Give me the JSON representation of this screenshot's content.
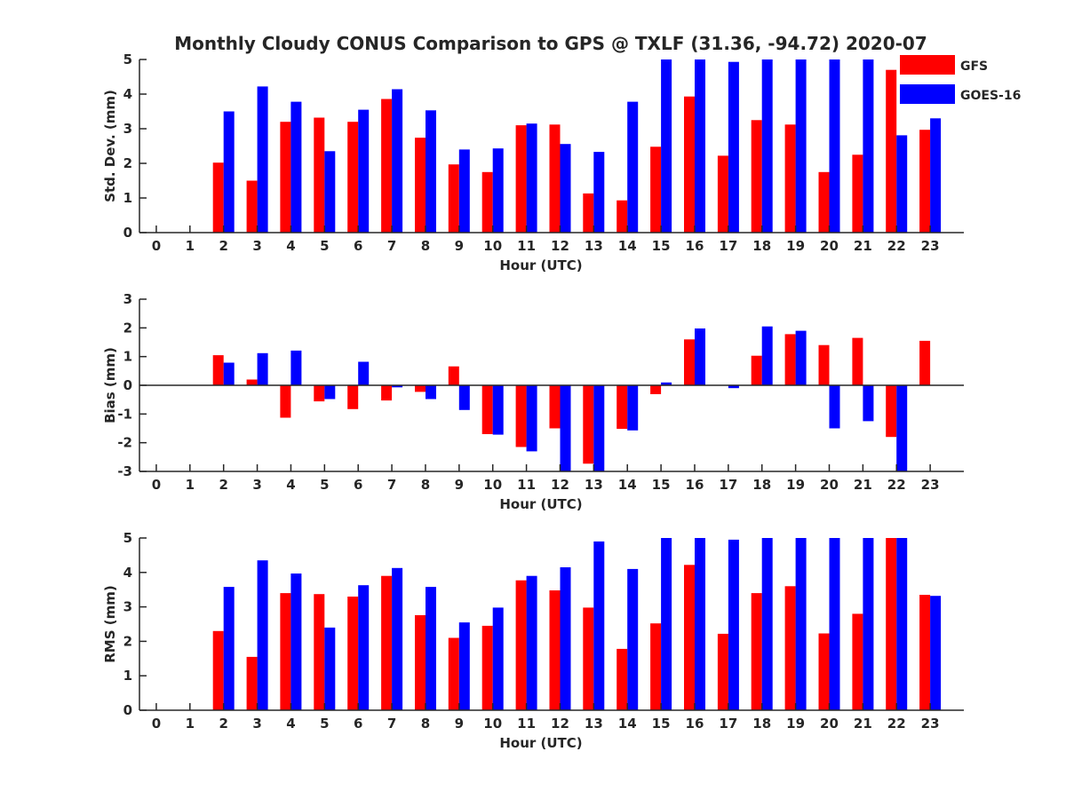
{
  "title": "Monthly Cloudy CONUS Comparison to GPS @ TXLF (31.36, -94.72) 2020-07",
  "colors": {
    "gfs": "#ff0000",
    "goes": "#0000ff",
    "axis": "#262626"
  },
  "legend": {
    "items": [
      "GFS",
      "GOES-16"
    ],
    "placement": "top-right"
  },
  "chart_data": [
    {
      "type": "bar",
      "name": "std-dev",
      "title": "",
      "xlabel": "Hour (UTC)",
      "ylabel": "Std. Dev. (mm)",
      "ylim": [
        0,
        5
      ],
      "yticks": [
        "0",
        "1",
        "2",
        "3",
        "4",
        "5"
      ],
      "ytick_values": [
        0,
        1,
        2,
        3,
        4,
        5
      ],
      "categories": [
        "0",
        "1",
        "2",
        "3",
        "4",
        "5",
        "6",
        "7",
        "8",
        "9",
        "10",
        "11",
        "12",
        "13",
        "14",
        "15",
        "16",
        "17",
        "18",
        "19",
        "20",
        "21",
        "22",
        "23"
      ],
      "series": [
        {
          "name": "GFS",
          "values": [
            0,
            0,
            2.02,
            1.5,
            3.2,
            3.32,
            3.2,
            3.86,
            2.74,
            1.97,
            1.75,
            3.1,
            3.12,
            1.13,
            0.93,
            2.48,
            3.93,
            2.22,
            3.25,
            3.12,
            1.75,
            2.25,
            4.7,
            2.97
          ]
        },
        {
          "name": "GOES-16",
          "values": [
            0,
            0,
            3.5,
            4.22,
            3.78,
            2.35,
            3.55,
            4.14,
            3.53,
            2.4,
            2.43,
            3.15,
            2.56,
            2.33,
            3.78,
            5.0,
            5.0,
            4.93,
            5.0,
            5.0,
            5.0,
            5.0,
            2.81,
            3.3
          ]
        }
      ]
    },
    {
      "type": "bar",
      "name": "bias",
      "title": "",
      "xlabel": "Hour (UTC)",
      "ylabel": "Bias (mm)",
      "ylim": [
        -3,
        3
      ],
      "yticks": [
        "-3",
        "-2",
        "-1",
        "0",
        "1",
        "2",
        "3"
      ],
      "ytick_values": [
        -3,
        -2,
        -1,
        0,
        1,
        2,
        3
      ],
      "categories": [
        "0",
        "1",
        "2",
        "3",
        "4",
        "5",
        "6",
        "7",
        "8",
        "9",
        "10",
        "11",
        "12",
        "13",
        "14",
        "15",
        "16",
        "17",
        "18",
        "19",
        "20",
        "21",
        "22",
        "23"
      ],
      "series": [
        {
          "name": "GFS",
          "values": [
            0,
            0,
            1.05,
            0.2,
            -1.13,
            -0.56,
            -0.83,
            -0.53,
            -0.23,
            0.66,
            -1.7,
            -2.15,
            -1.5,
            -2.73,
            -1.52,
            -0.31,
            1.6,
            0,
            1.03,
            1.78,
            1.4,
            1.65,
            -1.8,
            1.55
          ]
        },
        {
          "name": "GOES-16",
          "values": [
            0,
            0,
            0.79,
            1.12,
            1.21,
            -0.48,
            0.82,
            -0.07,
            -0.48,
            -0.86,
            -1.72,
            -2.3,
            -3.0,
            -3.0,
            -1.57,
            0.1,
            1.98,
            -0.1,
            2.05,
            1.9,
            -1.5,
            -1.25,
            -3.0,
            0
          ]
        }
      ]
    },
    {
      "type": "bar",
      "name": "rms",
      "title": "",
      "xlabel": "Hour (UTC)",
      "ylabel": "RMS (mm)",
      "ylim": [
        0,
        5
      ],
      "yticks": [
        "0",
        "1",
        "2",
        "3",
        "4",
        "5"
      ],
      "ytick_values": [
        0,
        1,
        2,
        3,
        4,
        5
      ],
      "categories": [
        "0",
        "1",
        "2",
        "3",
        "4",
        "5",
        "6",
        "7",
        "8",
        "9",
        "10",
        "11",
        "12",
        "13",
        "14",
        "15",
        "16",
        "17",
        "18",
        "19",
        "20",
        "21",
        "22",
        "23"
      ],
      "series": [
        {
          "name": "GFS",
          "values": [
            0,
            0,
            2.3,
            1.55,
            3.4,
            3.37,
            3.3,
            3.9,
            2.76,
            2.1,
            2.45,
            3.77,
            3.48,
            2.98,
            1.78,
            2.52,
            4.22,
            2.22,
            3.4,
            3.6,
            2.23,
            2.8,
            5.0,
            3.35
          ]
        },
        {
          "name": "GOES-16",
          "values": [
            0,
            0,
            3.58,
            4.35,
            3.97,
            2.4,
            3.63,
            4.13,
            3.58,
            2.55,
            2.98,
            3.9,
            4.15,
            4.9,
            4.1,
            5.0,
            5.0,
            4.95,
            5.0,
            5.0,
            5.0,
            5.0,
            5.0,
            3.32
          ]
        }
      ]
    }
  ]
}
